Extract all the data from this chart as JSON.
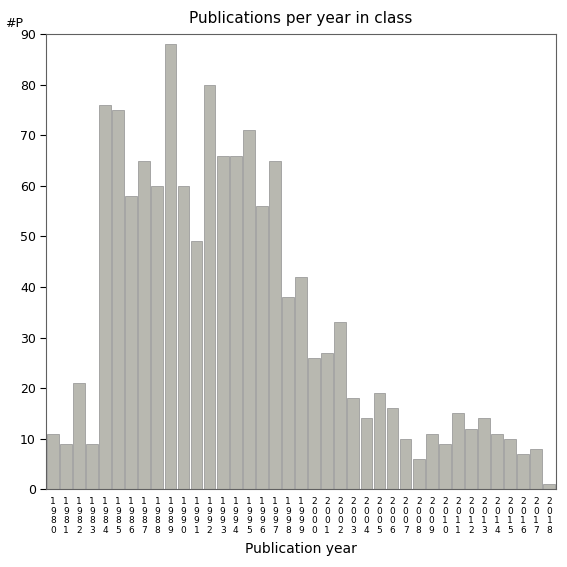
{
  "title": "Publications per year in class",
  "xlabel": "Publication year",
  "ylabel": "#P",
  "ylim": [
    0,
    90
  ],
  "yticks": [
    0,
    10,
    20,
    30,
    40,
    50,
    60,
    70,
    80,
    90
  ],
  "bar_color": "#b8b8b0",
  "bar_edgecolor": "#909090",
  "years": [
    "1980",
    "1981",
    "1982",
    "1983",
    "1984",
    "1985",
    "1986",
    "1987",
    "1988",
    "1989",
    "1990",
    "1991",
    "1992",
    "1993",
    "1994",
    "1995",
    "1996",
    "1997",
    "1998",
    "1999",
    "2000",
    "2001",
    "2002",
    "2003",
    "2004",
    "2005",
    "2006",
    "2007",
    "2008",
    "2009",
    "2010",
    "2011",
    "2012",
    "2013",
    "2014",
    "2015",
    "2016",
    "2017",
    "2018"
  ],
  "values": [
    11,
    9,
    21,
    9,
    76,
    75,
    58,
    65,
    60,
    88,
    60,
    49,
    80,
    66,
    66,
    71,
    56,
    65,
    38,
    42,
    26,
    27,
    33,
    18,
    14,
    19,
    16,
    10,
    6,
    11,
    9,
    15,
    12,
    14,
    11,
    10,
    7,
    8,
    1
  ]
}
